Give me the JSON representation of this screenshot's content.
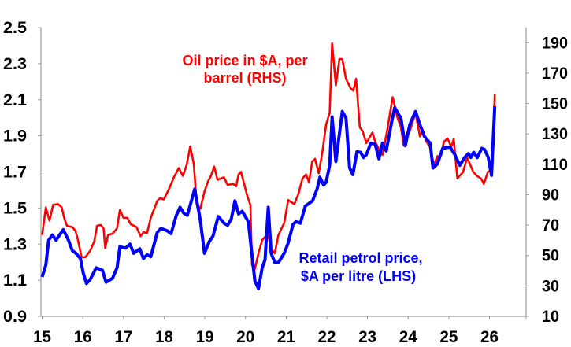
{
  "chart_data": {
    "type": "line",
    "title": "",
    "xlabel": "",
    "ylabel": "",
    "x_ticks": [
      "15",
      "16",
      "17",
      "18",
      "19",
      "20",
      "21",
      "22",
      "23",
      "24",
      "25",
      "26"
    ],
    "xlim": [
      14.97,
      26.9
    ],
    "y_left": {
      "lim": [
        0.9,
        2.5
      ],
      "ticks": [
        "0.9",
        "1.1",
        "1.3",
        "1.5",
        "1.7",
        "1.9",
        "2.1",
        "2.3",
        "2.5"
      ]
    },
    "y_right": {
      "lim": [
        10,
        200
      ],
      "ticks": [
        "10",
        "30",
        "50",
        "70",
        "90",
        "110",
        "130",
        "150",
        "170",
        "190"
      ]
    },
    "grid": false,
    "series": [
      {
        "name": "Oil price in $A, per barrel (RHS)",
        "label_lines": [
          "Oil price in $A, per",
          "barrel (RHS)"
        ],
        "axis": "right",
        "color": "#ff0000",
        "x": [
          15.0,
          15.09,
          15.18,
          15.27,
          15.39,
          15.48,
          15.55,
          15.61,
          15.74,
          15.82,
          15.88,
          15.97,
          16.06,
          16.18,
          16.28,
          16.35,
          16.44,
          16.51,
          16.55,
          16.62,
          16.73,
          16.84,
          16.91,
          17.0,
          17.09,
          17.18,
          17.32,
          17.42,
          17.49,
          17.58,
          17.67,
          17.83,
          17.9,
          17.99,
          18.12,
          18.24,
          18.36,
          18.46,
          18.55,
          18.64,
          18.73,
          18.8,
          18.89,
          18.99,
          19.08,
          19.15,
          19.23,
          19.31,
          19.47,
          19.56,
          19.69,
          19.77,
          19.83,
          19.89,
          20.05,
          20.12,
          20.16,
          20.23,
          20.32,
          20.41,
          20.55,
          20.63,
          20.72,
          20.81,
          20.95,
          21.05,
          21.2,
          21.3,
          21.4,
          21.49,
          21.56,
          21.64,
          21.71,
          21.8,
          21.89,
          21.98,
          22.07,
          22.13,
          22.22,
          22.31,
          22.38,
          22.47,
          22.58,
          22.65,
          22.72,
          22.81,
          22.88,
          22.97,
          23.12,
          23.19,
          23.33,
          23.37,
          23.48,
          23.62,
          23.73,
          23.82,
          23.89,
          23.98,
          24.04,
          24.18,
          24.29,
          24.36,
          24.45,
          24.54,
          24.63,
          24.72,
          24.8,
          24.88,
          24.97,
          25.06,
          25.12,
          25.21,
          25.35,
          25.45,
          25.6,
          25.69,
          25.79,
          25.86,
          25.96,
          26.02,
          26.08,
          26.13
        ],
        "values": [
          63.5,
          81.7,
          73.0,
          83.4,
          83.8,
          81.7,
          73.9,
          69.6,
          68.7,
          66.1,
          60.1,
          48.9,
          48.9,
          53.2,
          59.2,
          69.6,
          70.1,
          67.9,
          54.9,
          63.5,
          64.4,
          67.9,
          80.0,
          74.8,
          74.8,
          70.5,
          68.7,
          62.7,
          65.3,
          64.8,
          74.8,
          86.0,
          87.7,
          86.9,
          93.8,
          101.5,
          107.6,
          102.4,
          109.3,
          121.9,
          110.2,
          83.4,
          80.8,
          92.0,
          98.9,
          102.4,
          108.5,
          99.8,
          101.5,
          96.4,
          97.2,
          95.5,
          103.3,
          105.0,
          88.6,
          83.4,
          43.7,
          41.1,
          51.5,
          60.1,
          64.4,
          54.0,
          51.5,
          63.5,
          71.3,
          86.5,
          83.8,
          90.3,
          100.7,
          103.3,
          98.1,
          111.9,
          113.6,
          104.1,
          118.0,
          136.1,
          143.9,
          189.6,
          162.0,
          179.3,
          179.3,
          166.3,
          160.3,
          158.5,
          166.3,
          134.4,
          131.8,
          124.0,
          130.9,
          124.9,
          117.1,
          116.2,
          131.8,
          154.2,
          141.3,
          134.4,
          122.3,
          130.9,
          131.8,
          143.9,
          128.3,
          132.6,
          124.9,
          121.4,
          109.3,
          115.4,
          115.4,
          124.9,
          127.0,
          121.4,
          126.6,
          100.7,
          105.0,
          114.5,
          105.0,
          102.4,
          100.7,
          97.2,
          105.0,
          105.9,
          116.2,
          156.0
        ]
      },
      {
        "name": "Retail petrol price, $A per litre (LHS)",
        "label_lines": [
          "Retail petrol price,",
          "$A per litre (LHS)"
        ],
        "axis": "left",
        "color": "#0000ff",
        "x": [
          15.0,
          15.09,
          15.16,
          15.25,
          15.34,
          15.52,
          15.66,
          15.74,
          15.83,
          15.94,
          16.01,
          16.09,
          16.18,
          16.33,
          16.48,
          16.57,
          16.73,
          16.84,
          16.91,
          17.05,
          17.16,
          17.25,
          17.4,
          17.49,
          17.58,
          17.67,
          17.83,
          17.92,
          18.08,
          18.17,
          18.3,
          18.39,
          18.48,
          18.57,
          18.75,
          18.89,
          18.99,
          19.11,
          19.2,
          19.33,
          19.47,
          19.56,
          19.65,
          19.74,
          19.83,
          19.92,
          20.07,
          20.23,
          20.32,
          20.41,
          20.48,
          20.56,
          20.63,
          20.72,
          20.81,
          20.95,
          21.04,
          21.17,
          21.24,
          21.35,
          21.47,
          21.56,
          21.65,
          21.76,
          21.83,
          21.92,
          21.98,
          22.07,
          22.13,
          22.22,
          22.38,
          22.47,
          22.56,
          22.64,
          22.74,
          22.83,
          22.9,
          22.97,
          23.08,
          23.19,
          23.28,
          23.37,
          23.46,
          23.6,
          23.67,
          23.78,
          23.82,
          23.93,
          24.04,
          24.18,
          24.29,
          24.4,
          24.54,
          24.61,
          24.72,
          24.85,
          25.03,
          25.15,
          25.27,
          25.39,
          25.48,
          25.54,
          25.61,
          25.7,
          25.81,
          25.88,
          25.97,
          26.05,
          26.13
        ],
        "values": [
          1.118,
          1.184,
          1.322,
          1.351,
          1.322,
          1.38,
          1.315,
          1.264,
          1.249,
          1.22,
          1.14,
          1.082,
          1.104,
          1.169,
          1.155,
          1.089,
          1.111,
          1.169,
          1.285,
          1.278,
          1.3,
          1.249,
          1.274,
          1.22,
          1.242,
          1.23,
          1.365,
          1.387,
          1.373,
          1.358,
          1.46,
          1.504,
          1.472,
          1.46,
          1.605,
          1.431,
          1.249,
          1.315,
          1.344,
          1.453,
          1.416,
          1.405,
          1.438,
          1.54,
          1.467,
          1.482,
          1.424,
          1.096,
          1.053,
          1.169,
          1.213,
          1.504,
          1.249,
          1.198,
          1.198,
          1.249,
          1.3,
          1.409,
          1.424,
          1.416,
          1.511,
          1.525,
          1.54,
          1.605,
          1.671,
          1.627,
          1.642,
          1.736,
          2.005,
          1.758,
          2.035,
          1.998,
          1.722,
          1.685,
          1.812,
          1.809,
          1.78,
          1.795,
          1.86,
          1.853,
          1.773,
          1.86,
          1.816,
          1.984,
          2.056,
          2.013,
          1.998,
          1.845,
          1.962,
          2.035,
          1.962,
          1.896,
          1.86,
          1.722,
          1.744,
          1.831,
          1.838,
          1.795,
          1.736,
          1.78,
          1.802,
          1.78,
          1.809,
          1.78,
          1.831,
          1.824,
          1.78,
          1.681,
          2.064
        ]
      }
    ]
  }
}
